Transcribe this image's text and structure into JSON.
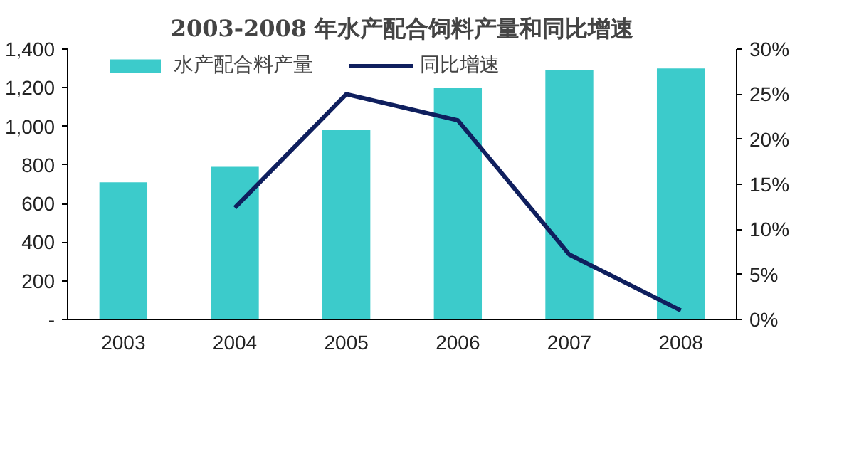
{
  "chart_data": {
    "type": "bar",
    "title": "2003-2008 年水产配合饲料产量和同比增速",
    "categories": [
      "2003",
      "2004",
      "2005",
      "2006",
      "2007",
      "2008"
    ],
    "series": [
      {
        "name": "水产配合料产量",
        "color": "#3ccbcb",
        "values": [
          710,
          790,
          980,
          1200,
          1290,
          1300
        ]
      },
      {
        "name": "同比增速",
        "type": "line",
        "axis": "y2",
        "color": "#0f1f5e",
        "values": [
          null,
          12.4,
          25.0,
          22.1,
          7.2,
          1.0
        ]
      }
    ],
    "ylim": [
      0,
      1400
    ],
    "yticks": [
      {
        "value": 0,
        "label": "-"
      },
      200,
      400,
      600,
      {
        "value": 800,
        "label": "800"
      },
      {
        "value": 1000,
        "label": "1,000"
      },
      {
        "value": 1200,
        "label": "1,200"
      },
      {
        "value": 1400,
        "label": "1,400"
      }
    ],
    "y2lim": [
      0,
      30
    ],
    "y2ticks": [
      {
        "value": 0,
        "label": "0%"
      },
      {
        "value": 5,
        "label": "5%"
      },
      {
        "value": 10,
        "label": "10%"
      },
      {
        "value": 15,
        "label": "15%"
      },
      {
        "value": 20,
        "label": "20%"
      },
      {
        "value": 25,
        "label": "25%"
      },
      {
        "value": 30,
        "label": "30%"
      }
    ],
    "legend": "top",
    "grid": false,
    "marker": "none",
    "line_style": "solid"
  }
}
